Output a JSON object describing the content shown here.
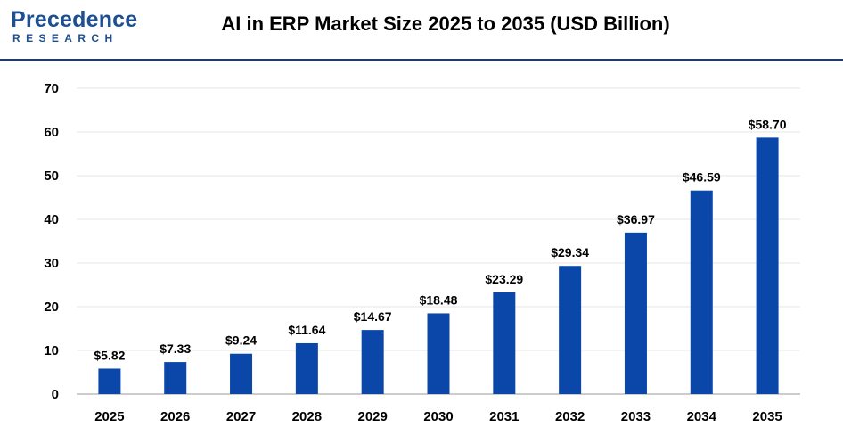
{
  "header": {
    "logo_main": "Precedence",
    "logo_sub": "RESEARCH",
    "title": "AI in ERP Market Size 2025 to 2035 (USD Billion)"
  },
  "colors": {
    "bar": "#0a47a8",
    "brand": "#1d4f91",
    "grid": "#e6e6e6",
    "axis": "#999999"
  },
  "chart_data": {
    "type": "bar",
    "title": "AI in ERP Market Size 2025 to 2035 (USD Billion)",
    "xlabel": "",
    "ylabel": "",
    "categories": [
      "2025",
      "2026",
      "2027",
      "2028",
      "2029",
      "2030",
      "2031",
      "2032",
      "2033",
      "2034",
      "2035"
    ],
    "values": [
      5.82,
      7.33,
      9.24,
      11.64,
      14.67,
      18.48,
      23.29,
      29.34,
      36.97,
      46.59,
      58.7
    ],
    "data_labels": [
      "$5.82",
      "$7.33",
      "$9.24",
      "$11.64",
      "$14.67",
      "$18.48",
      "$23.29",
      "$29.34",
      "$36.97",
      "$46.59",
      "$58.70"
    ],
    "ylim": [
      0,
      70
    ],
    "yticks": [
      0,
      10,
      20,
      30,
      40,
      50,
      60,
      70
    ],
    "grid": true,
    "legend": "none"
  }
}
